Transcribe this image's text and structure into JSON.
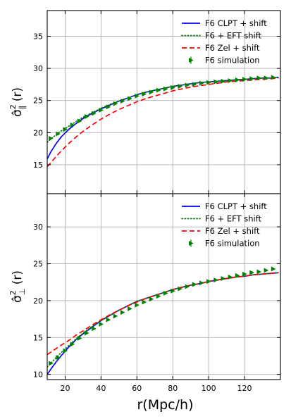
{
  "chart_data": [
    {
      "type": "line",
      "panel": "top",
      "ylabel_base": "σ̂",
      "ylabel_sup": "2",
      "ylabel_sub": "∥",
      "ylabel_arg": "(r)",
      "xlim": [
        10,
        140
      ],
      "ylim": [
        10.5,
        39
      ],
      "xticks": [
        20,
        40,
        60,
        80,
        100,
        120
      ],
      "yticks": [
        15,
        20,
        25,
        30,
        35
      ],
      "grid": true,
      "legend_position": "top-right",
      "series": [
        {
          "name": "F6 CLPT + shift",
          "style": "solid",
          "color": "#0000ff",
          "x": [
            10,
            12,
            15,
            18,
            22,
            26,
            30,
            35,
            40,
            45,
            50,
            55,
            60,
            65,
            70,
            75,
            80,
            85,
            90,
            95,
            100,
            105,
            110,
            115,
            120,
            125,
            130,
            135,
            139
          ],
          "y": [
            15.9,
            17.0,
            18.3,
            19.4,
            20.5,
            21.4,
            22.2,
            23.0,
            23.7,
            24.3,
            24.9,
            25.4,
            25.9,
            26.3,
            26.6,
            26.9,
            27.2,
            27.4,
            27.6,
            27.8,
            27.9,
            28.0,
            28.1,
            28.2,
            28.3,
            28.4,
            28.5,
            28.5,
            28.6
          ]
        },
        {
          "name": "F6 + EFT shift",
          "style": "dotted",
          "color": "#008000",
          "x": [
            10,
            12,
            15,
            18,
            22,
            26,
            30,
            35,
            40,
            45,
            50,
            55,
            60,
            65,
            70,
            75,
            80,
            85,
            90,
            95,
            100,
            105,
            110,
            115,
            120,
            125,
            130,
            135,
            139
          ],
          "y": [
            18.5,
            19.0,
            19.7,
            20.3,
            21.0,
            21.7,
            22.4,
            23.1,
            23.8,
            24.4,
            24.9,
            25.4,
            25.9,
            26.3,
            26.6,
            26.9,
            27.2,
            27.4,
            27.6,
            27.8,
            27.9,
            28.0,
            28.1,
            28.2,
            28.3,
            28.4,
            28.5,
            28.5,
            28.6
          ]
        },
        {
          "name": "F6 Zel + shift",
          "style": "dashed",
          "color": "#ff0000",
          "x": [
            10,
            12,
            15,
            18,
            22,
            26,
            30,
            35,
            40,
            45,
            50,
            55,
            60,
            65,
            70,
            75,
            80,
            85,
            90,
            95,
            100,
            105,
            110,
            115,
            120,
            125,
            130,
            135,
            139
          ],
          "y": [
            14.7,
            15.3,
            16.3,
            17.2,
            18.3,
            19.3,
            20.2,
            21.2,
            22.1,
            22.9,
            23.6,
            24.2,
            24.8,
            25.3,
            25.7,
            26.1,
            26.5,
            26.8,
            27.1,
            27.3,
            27.5,
            27.7,
            27.9,
            28.0,
            28.1,
            28.2,
            28.3,
            28.4,
            28.5
          ]
        },
        {
          "name": "F6 simulation",
          "style": "markers",
          "color": "#008000",
          "x": [
            12,
            16,
            20,
            24,
            28,
            32,
            36,
            40,
            44,
            48,
            52,
            56,
            60,
            64,
            68,
            72,
            76,
            80,
            84,
            88,
            92,
            96,
            100,
            104,
            108,
            112,
            116,
            120,
            124,
            128,
            132,
            136
          ],
          "y": [
            19.1,
            19.8,
            20.5,
            21.2,
            21.8,
            22.5,
            23.0,
            23.5,
            24.0,
            24.5,
            24.9,
            25.3,
            25.7,
            26.0,
            26.3,
            26.6,
            26.8,
            27.0,
            27.2,
            27.4,
            27.5,
            27.7,
            27.8,
            27.9,
            28.0,
            28.1,
            28.2,
            28.3,
            28.4,
            28.5,
            28.5,
            28.6
          ]
        }
      ]
    },
    {
      "type": "line",
      "panel": "bottom",
      "ylabel_base": "σ̂",
      "ylabel_sup": "2",
      "ylabel_sub": "⊥",
      "ylabel_arg": "(r)",
      "xlabel": "r(Mpc/h)",
      "xlim": [
        10,
        140
      ],
      "ylim": [
        9.3,
        34.5
      ],
      "xticks": [
        20,
        40,
        60,
        80,
        100,
        120
      ],
      "yticks": [
        10,
        15,
        20,
        25,
        30
      ],
      "grid": true,
      "legend_position": "top-right",
      "series": [
        {
          "name": "F6 CLPT + shift",
          "style": "solid",
          "color": "#0000ff",
          "x": [
            10,
            12,
            15,
            18,
            22,
            26,
            30,
            35,
            40,
            45,
            50,
            55,
            60,
            65,
            70,
            75,
            80,
            85,
            90,
            95,
            100,
            105,
            110,
            115,
            120,
            125,
            130,
            135,
            139
          ],
          "y": [
            10.0,
            10.7,
            11.7,
            12.6,
            13.7,
            14.7,
            15.5,
            16.4,
            17.3,
            18.0,
            18.7,
            19.3,
            19.9,
            20.3,
            20.7,
            21.1,
            21.5,
            21.8,
            22.1,
            22.3,
            22.6,
            22.8,
            23.0,
            23.2,
            23.3,
            23.5,
            23.6,
            23.7,
            23.8
          ]
        },
        {
          "name": "F6 + EFT shift",
          "style": "dotted",
          "color": "#008000",
          "x": [
            10,
            12,
            15,
            18,
            22,
            26,
            30,
            35,
            40,
            45,
            50,
            55,
            60,
            65,
            70,
            75,
            80,
            85,
            90,
            95,
            100,
            105,
            110,
            115,
            120,
            125,
            130,
            135,
            139
          ],
          "y": [
            11.0,
            11.5,
            12.3,
            13.0,
            13.9,
            14.8,
            15.6,
            16.5,
            17.3,
            18.0,
            18.7,
            19.3,
            19.9,
            20.3,
            20.7,
            21.1,
            21.5,
            21.8,
            22.1,
            22.3,
            22.6,
            22.8,
            23.0,
            23.2,
            23.3,
            23.5,
            23.6,
            23.7,
            23.8
          ]
        },
        {
          "name": "F6 Zel + shift",
          "style": "dashed",
          "color": "#ff0000",
          "x": [
            10,
            12,
            15,
            18,
            22,
            26,
            30,
            35,
            40,
            45,
            50,
            55,
            60,
            65,
            70,
            75,
            80,
            85,
            90,
            95,
            100,
            105,
            110,
            115,
            120,
            125,
            130,
            135,
            139
          ],
          "y": [
            12.7,
            13.0,
            13.5,
            14.0,
            14.6,
            15.3,
            15.9,
            16.7,
            17.4,
            18.1,
            18.7,
            19.3,
            19.8,
            20.3,
            20.7,
            21.1,
            21.5,
            21.8,
            22.1,
            22.3,
            22.6,
            22.8,
            23.0,
            23.2,
            23.3,
            23.5,
            23.6,
            23.7,
            23.8
          ]
        },
        {
          "name": "F6 simulation",
          "style": "markers",
          "color": "#008000",
          "x": [
            12,
            16,
            20,
            24,
            28,
            32,
            36,
            40,
            44,
            48,
            52,
            56,
            60,
            64,
            68,
            72,
            76,
            80,
            84,
            88,
            92,
            96,
            100,
            104,
            108,
            112,
            116,
            120,
            124,
            128,
            132,
            136
          ],
          "y": [
            11.5,
            12.3,
            13.2,
            14.1,
            14.9,
            15.6,
            16.2,
            16.8,
            17.4,
            17.9,
            18.4,
            18.9,
            19.4,
            19.8,
            20.2,
            20.6,
            21.0,
            21.3,
            21.6,
            21.9,
            22.2,
            22.4,
            22.6,
            22.8,
            23.0,
            23.2,
            23.4,
            23.6,
            23.8,
            23.9,
            24.1,
            24.3
          ]
        }
      ]
    }
  ]
}
